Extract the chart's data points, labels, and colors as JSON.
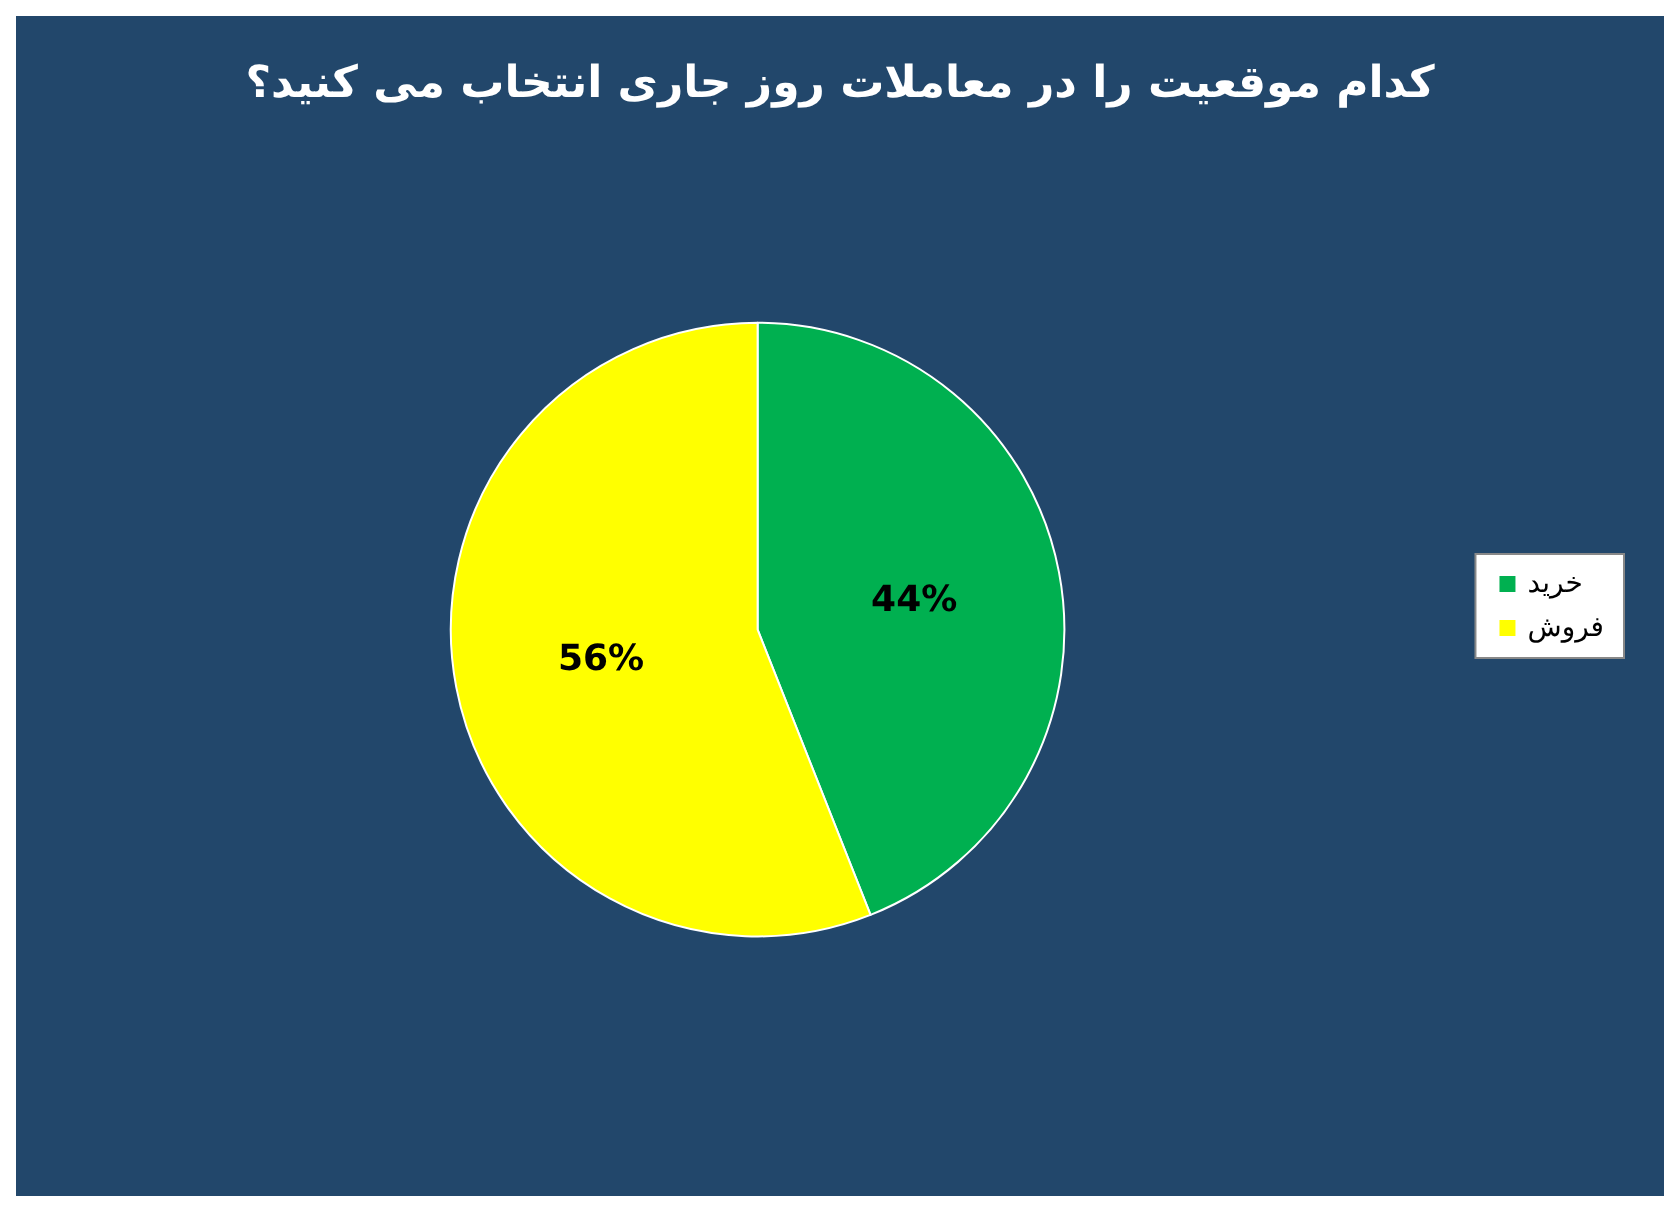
{
  "chart_data": {
    "type": "pie",
    "title": "کدام موقعیت را در معاملات روز جاری انتخاب می کنید؟",
    "categories": [
      "خرید",
      "فروش"
    ],
    "values": [
      44,
      56
    ],
    "colors": [
      "#00b050",
      "#ffff00"
    ],
    "value_labels": [
      "44%",
      "56%"
    ],
    "legend": "right"
  }
}
